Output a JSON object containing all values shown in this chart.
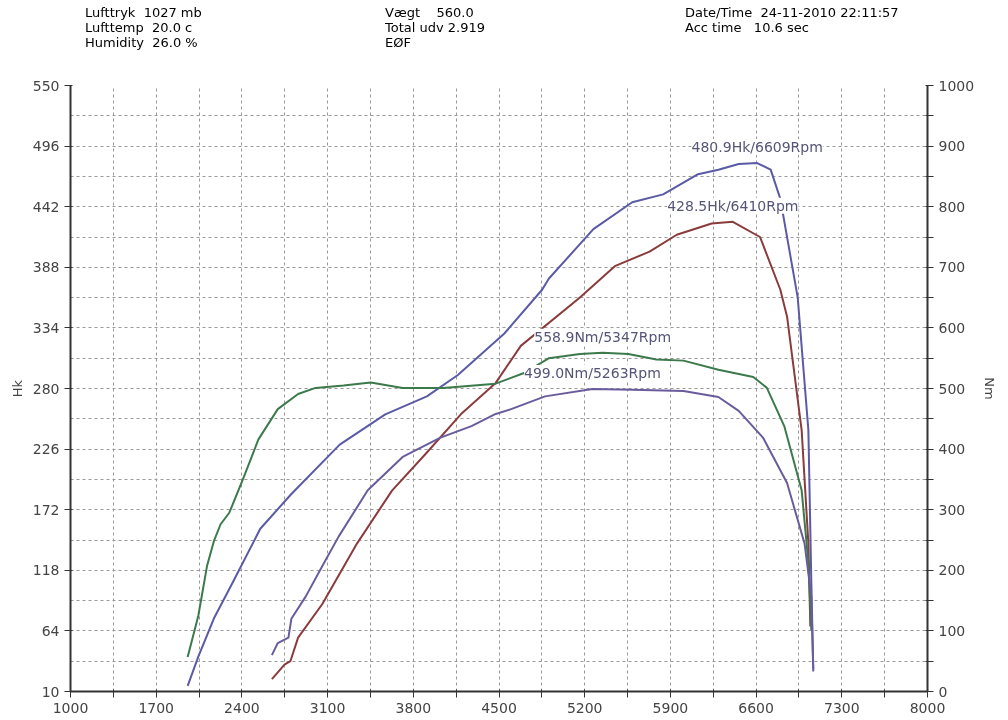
{
  "chart_data": {
    "type": "line",
    "ylabel": "Hk",
    "y2label": "Nm",
    "annotations": [
      "Lufttryk  1027 mb",
      "Lufttemp  20.0 c",
      "Humidity  26.0 %",
      "Vægt    560.0",
      "Total udv 2.919",
      "EØF",
      "Date/Time  24-11-2010 22:11:57",
      "Acc time   10.6 sec",
      {
        "text": "480.9Hk/6609Rpm",
        "x": 6609,
        "y": 480.9
      },
      {
        "text": "428.5Hk/6410Rpm",
        "x": 6410,
        "y": 428.5
      },
      {
        "text": "558.9Nm/5347Rpm",
        "x": 5347,
        "y": 311.8
      },
      {
        "text": "499.0Nm/5263Rpm",
        "x": 5263,
        "y": 279.5
      }
    ],
    "xlim": [
      1000,
      8000
    ],
    "xticks": [
      1000,
      {
        "value": 1350,
        "label": null
      },
      1700,
      {
        "value": 2050,
        "label": null
      },
      2400,
      {
        "value": 2750,
        "label": null
      },
      3100,
      {
        "value": 3450,
        "label": null
      },
      3800,
      {
        "value": 4150,
        "label": null
      },
      4500,
      {
        "value": 4850,
        "label": null
      },
      5200,
      {
        "value": 5550,
        "label": null
      },
      5900,
      {
        "value": 6250,
        "label": null
      },
      6600,
      {
        "value": 6950,
        "label": null
      },
      7300,
      {
        "value": 7650,
        "label": null
      },
      8000
    ],
    "ylim": [
      10,
      550
    ],
    "yticks": [
      10,
      64,
      118,
      172,
      226,
      280,
      334,
      388,
      442,
      496,
      550
    ],
    "y2lim": [
      0,
      1000
    ],
    "y2ticks": [
      0,
      {
        "value": 50,
        "label": null
      },
      100,
      {
        "value": 150,
        "label": null
      },
      200,
      {
        "value": 250,
        "label": null
      },
      300,
      {
        "value": 350,
        "label": null
      },
      400,
      {
        "value": 450,
        "label": null
      },
      500,
      {
        "value": 550,
        "label": null
      },
      600,
      {
        "value": 650,
        "label": null
      },
      700,
      {
        "value": 750,
        "label": null
      },
      800,
      {
        "value": 850,
        "label": null
      },
      900,
      {
        "value": 950,
        "label": null
      },
      1000
    ],
    "grid": true,
    "marker": "none",
    "line_style": "solid",
    "series": [
      {
        "color": "#5a5aa6",
        "x": [
          1957,
          2044,
          2171,
          2329,
          2550,
          2804,
          3199,
          3571,
          3911,
          4164,
          4473,
          4544,
          4852,
          4908,
          5271,
          5588,
          5841,
          6126,
          6292,
          6458,
          6609,
          6719,
          6798,
          6940,
          7027,
          7051,
          7067
        ],
        "values": [
          15,
          41,
          75,
          108,
          155,
          186,
          230,
          257,
          273,
          292,
          322,
          329,
          368,
          378,
          422,
          446,
          453,
          471,
          475,
          480,
          480.9,
          475,
          449,
          361,
          243,
          108,
          30
        ]
      },
      {
        "color": "#8a3c3c",
        "x": [
          2645,
          2748,
          2796,
          2859,
          3057,
          3341,
          3626,
          3911,
          4188,
          4473,
          4678,
          5161,
          5446,
          5730,
          5952,
          6237,
          6410,
          6632,
          6798,
          6853,
          6972,
          7027,
          7043
        ],
        "values": [
          21,
          34,
          37,
          58,
          88,
          142,
          189,
          223,
          257,
          285,
          318,
          361,
          389,
          402,
          417,
          427,
          428.5,
          415,
          368,
          344,
          243,
          142,
          68
        ]
      },
      {
        "color": "#3c7a4c",
        "axis": "y2",
        "x": [
          1957,
          2044,
          2115,
          2171,
          2226,
          2297,
          2408,
          2535,
          2693,
          2859,
          3001,
          3231,
          3452,
          3713,
          4045,
          4473,
          4710,
          4908,
          5161,
          5347,
          5556,
          5786,
          6007,
          6292,
          6577,
          6688,
          6830,
          6972,
          7027,
          7051
        ],
        "values": [
          57,
          125,
          207,
          248,
          276,
          295,
          350,
          416,
          466,
          491,
          501,
          505,
          510,
          501,
          501,
          508,
          526,
          550,
          557,
          558.9,
          557,
          548,
          546,
          531,
          519,
          501,
          438,
          332,
          213,
          101
        ]
      },
      {
        "color": "#6a5c9c",
        "axis": "y2",
        "x": [
          2645,
          2693,
          2780,
          2804,
          2922,
          3057,
          3191,
          3428,
          3713,
          4022,
          4275,
          4473,
          4599,
          4876,
          5263,
          5588,
          6007,
          6292,
          6458,
          6656,
          6853,
          6996,
          7051,
          7067
        ],
        "values": [
          60,
          80,
          89,
          120,
          157,
          207,
          256,
          332,
          387,
          419,
          438,
          458,
          466,
          487,
          499.0,
          498,
          496,
          486,
          463,
          419,
          344,
          244,
          157,
          33
        ]
      }
    ]
  }
}
